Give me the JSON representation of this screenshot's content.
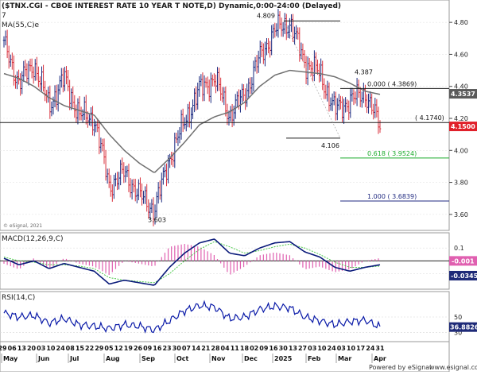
{
  "header": {
    "title": "($TNX.CGI - CBOE INTEREST RATE 10 YEAR T NOTE,D) Dynamic,0:00-24:00 (Delayed)",
    "row2": "7",
    "ma_label": "MA(55,C)e"
  },
  "footer": {
    "powered": "Powered by eSignal",
    "site": "www.esignal.com",
    "copyright": "© eSignal, 2021"
  },
  "colors": {
    "up": "#1a2a80",
    "down": "#d9303c",
    "ma": "#707070",
    "macd": "#0a1a7a",
    "signal": "#4cc94c",
    "hist": "#e060b0",
    "rsi": "#0a1aa8",
    "fib_green": "#1aaa2a",
    "fib_navy": "#202a80",
    "price_tag": "#e0202a",
    "grey_tag": "#5a5a5a",
    "navy_tag": "#1e2a78"
  },
  "chart_data": [
    {
      "type": "line",
      "panel": "price",
      "title": "($TNX.CGI - CBOE INTEREST RATE 10 YEAR T NOTE,D) Dynamic,0:00-24:00 (Delayed)",
      "x": [
        "2024-04-29",
        "2024-05-13",
        "2024-05-27",
        "2024-06-10",
        "2024-06-24",
        "2024-07-08",
        "2024-07-22",
        "2024-08-05",
        "2024-08-19",
        "2024-09-02",
        "2024-09-16",
        "2024-09-30",
        "2024-10-14",
        "2024-10-28",
        "2024-11-11",
        "2024-11-25",
        "2024-12-09",
        "2024-12-23",
        "2025-01-06",
        "2025-01-13",
        "2025-01-27",
        "2025-02-10",
        "2025-02-24",
        "2025-03-10",
        "2025-03-24",
        "2025-03-31"
      ],
      "series": [
        {
          "name": "$TNX",
          "values": [
            4.66,
            4.42,
            4.54,
            4.28,
            4.45,
            4.22,
            4.2,
            3.78,
            3.86,
            3.72,
            3.63,
            3.95,
            4.18,
            4.38,
            4.45,
            4.22,
            4.35,
            4.58,
            4.75,
            4.8,
            4.55,
            4.48,
            4.25,
            4.31,
            4.36,
            4.15
          ]
        },
        {
          "name": "MA(55,C)e",
          "values": [
            4.48,
            4.45,
            4.4,
            4.33,
            4.28,
            4.25,
            4.22,
            4.1,
            4.0,
            3.92,
            3.86,
            3.95,
            4.05,
            4.16,
            4.21,
            4.24,
            4.3,
            4.4,
            4.47,
            4.5,
            4.49,
            4.48,
            4.46,
            4.42,
            4.37,
            4.35
          ]
        }
      ],
      "yticks": [
        3.6,
        3.8,
        4.0,
        4.2,
        4.4,
        4.6,
        4.8
      ],
      "ylim": [
        3.5,
        4.9
      ],
      "annotations": [
        "4.809",
        "3.603",
        "4.387",
        "4.106"
      ],
      "fib_levels": [
        {
          "label": "0.000 ( 4.3869)",
          "value": 4.3869
        },
        {
          "label": "0.618 ( 3.9524)",
          "value": 3.9524
        },
        {
          "label": "1.000 ( 3.6839)",
          "value": 3.6839
        }
      ],
      "hline": {
        "label": "( 4.1740)",
        "value": 4.174
      },
      "price_tags": {
        "close": "4.1500",
        "ma": "4.3537"
      }
    },
    {
      "type": "line",
      "panel": "macd",
      "title": "MACD(12,26,9,C)",
      "series": [
        {
          "name": "MACD",
          "values": [
            0.02,
            -0.03,
            0.0,
            -0.06,
            -0.02,
            -0.05,
            -0.08,
            -0.18,
            -0.15,
            -0.17,
            -0.19,
            -0.05,
            0.06,
            0.14,
            0.17,
            0.06,
            0.04,
            0.1,
            0.14,
            0.15,
            0.07,
            0.03,
            -0.05,
            -0.08,
            -0.05,
            -0.03
          ]
        },
        {
          "name": "Signal",
          "values": [
            0.03,
            0.0,
            -0.01,
            -0.03,
            -0.03,
            -0.04,
            -0.06,
            -0.13,
            -0.15,
            -0.16,
            -0.17,
            -0.1,
            0.0,
            0.09,
            0.15,
            0.11,
            0.06,
            0.08,
            0.11,
            0.13,
            0.1,
            0.05,
            -0.01,
            -0.05,
            -0.05,
            -0.04
          ]
        }
      ],
      "yticks": [
        0.1,
        -0.1
      ],
      "tags": {
        "hist": "-0.001",
        "macd": "-0.0345"
      }
    },
    {
      "type": "line",
      "panel": "rsi",
      "title": "RSI(14,C)",
      "series": [
        {
          "name": "RSI",
          "values": [
            55,
            50,
            52,
            42,
            48,
            40,
            38,
            35,
            40,
            38,
            33,
            45,
            58,
            65,
            63,
            48,
            50,
            60,
            64,
            62,
            50,
            45,
            40,
            44,
            46,
            36.88
          ]
        }
      ],
      "yticks": [
        50,
        30
      ],
      "ylim": [
        20,
        80
      ],
      "tag": "36.8826"
    }
  ],
  "x_axis": {
    "days": [
      "29",
      "06",
      "13",
      "20",
      "03",
      "10",
      "24",
      "08",
      "15",
      "22",
      "29",
      "05",
      "12",
      "19",
      "26",
      "09",
      "16",
      "23",
      "30",
      "07",
      "14",
      "21",
      "28",
      "04",
      "11",
      "18",
      "02",
      "09",
      "16",
      "30",
      "13",
      "27",
      "03",
      "10",
      "24",
      "03",
      "10",
      "17",
      "24",
      "31"
    ],
    "months": [
      "May",
      "Jun",
      "Jul",
      "Aug",
      "Sep",
      "Oct",
      "Nov",
      "Dec",
      "2025",
      "Feb",
      "Mar",
      "Apr"
    ]
  }
}
